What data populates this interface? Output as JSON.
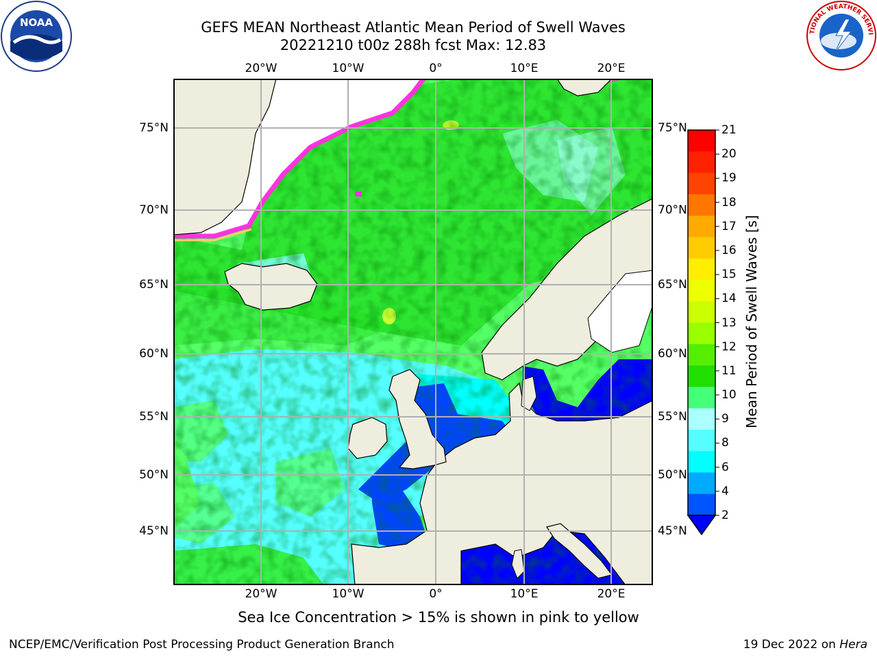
{
  "header": {
    "title_line1": "GEFS MEAN Northeast Atlantic Mean Period of Swell Waves",
    "title_line2": "20221210 t00z 288h fcst   Max: 12.83"
  },
  "logos": {
    "noaa": {
      "text": "NOAA",
      "icon": "noaa-logo-icon"
    },
    "nws": {
      "text": "NATIONAL WEATHER SERVICE",
      "icon": "nws-logo-icon"
    }
  },
  "map": {
    "lon_labels": [
      "20°W",
      "10°W",
      "0°",
      "10°E",
      "20°E"
    ],
    "lon_values": [
      -20,
      -10,
      0,
      10,
      20
    ],
    "lat_labels": [
      "75°N",
      "70°N",
      "65°N",
      "60°N",
      "55°N",
      "50°N",
      "45°N"
    ],
    "lat_values": [
      75,
      70,
      65,
      60,
      55,
      50,
      45
    ],
    "lon_range": [
      -30,
      25
    ],
    "lat_range": [
      41,
      78
    ],
    "colors": {
      "land": "#efedde",
      "ocean_main": "#55ff66",
      "ocean_north": "#22dd22",
      "ocean_south": "#66ffff",
      "ocean_coastal": "#0033ff",
      "ice": "#ffffff",
      "ice_edge": "#ff33dd",
      "grid": "#b0b0b0"
    }
  },
  "colorbar": {
    "label": "Mean Period of Swell Waves [s]",
    "ticks": [
      "21",
      "20",
      "19",
      "18",
      "17",
      "16",
      "15",
      "14",
      "13",
      "12",
      "11",
      "10",
      "9",
      "8",
      "6",
      "4",
      "2"
    ],
    "colors": [
      "#ff0000",
      "#ff2200",
      "#ff4400",
      "#ff7700",
      "#ffaa00",
      "#ffcc00",
      "#ffee00",
      "#eeff00",
      "#ccff00",
      "#99ff00",
      "#55ee00",
      "#22dd00",
      "#44ff77",
      "#aaffff",
      "#55ffff",
      "#00ffff",
      "#00aaff",
      "#0055ff"
    ],
    "extend_color": "#0000ff"
  },
  "footer": {
    "note": "Sea Ice Concentration > 15% is shown in pink to yellow",
    "credit": "NCEP/EMC/Verification Post Processing Product Generation Branch",
    "date": "19 Dec 2022 on ",
    "host": "Hera"
  }
}
